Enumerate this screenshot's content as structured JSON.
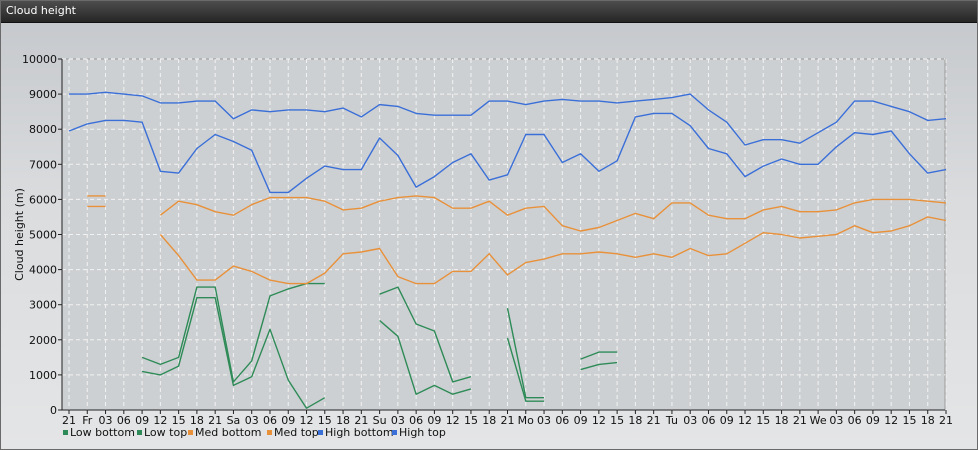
{
  "window": {
    "title": "Cloud height"
  },
  "chart_data": {
    "type": "line",
    "title": "Cloud height",
    "xlabel": "",
    "ylabel": "Cloud height (m)",
    "ylim": [
      0,
      10000
    ],
    "yticks": [
      0,
      1000,
      2000,
      3000,
      4000,
      5000,
      6000,
      7000,
      8000,
      9000,
      10000
    ],
    "grid": true,
    "legend_position": "bottom-left",
    "x": [
      "21",
      "Fr",
      "03",
      "06",
      "09",
      "12",
      "15",
      "18",
      "21",
      "Sa",
      "03",
      "06",
      "09",
      "12",
      "15",
      "18",
      "21",
      "Su",
      "03",
      "06",
      "09",
      "12",
      "15",
      "18",
      "21",
      "Mo",
      "03",
      "06",
      "09",
      "12",
      "15",
      "18",
      "21",
      "Tu",
      "03",
      "06",
      "09",
      "12",
      "15",
      "18",
      "21",
      "We",
      "03",
      "06",
      "09",
      "12",
      "15",
      "18",
      "21"
    ],
    "series": [
      {
        "name": "Low bottom",
        "color": "#2e8b57",
        "values": [
          null,
          null,
          null,
          null,
          1100,
          1000,
          1250,
          3200,
          3200,
          700,
          950,
          2300,
          850,
          50,
          350,
          null,
          null,
          2550,
          2100,
          450,
          700,
          450,
          600,
          null,
          2050,
          250,
          250,
          null,
          1150,
          1300,
          1350,
          null,
          null,
          null,
          null,
          null,
          null,
          null,
          null,
          null,
          null,
          null,
          null,
          null,
          null,
          null,
          null,
          null,
          null
        ]
      },
      {
        "name": "Low top",
        "color": "#2e8b57",
        "values": [
          null,
          null,
          null,
          null,
          1500,
          1300,
          1500,
          3500,
          3500,
          800,
          1400,
          3250,
          3450,
          3600,
          3600,
          null,
          null,
          3300,
          3500,
          2450,
          2250,
          800,
          950,
          null,
          2900,
          350,
          350,
          null,
          1450,
          1650,
          1650,
          null,
          null,
          null,
          null,
          null,
          null,
          null,
          null,
          null,
          null,
          null,
          null,
          null,
          null,
          null,
          null,
          null,
          null
        ]
      },
      {
        "name": "Med bottom",
        "color": "#e8913a",
        "values": [
          null,
          5800,
          5800,
          null,
          null,
          5000,
          4400,
          3700,
          3700,
          4100,
          3950,
          3700,
          3600,
          3600,
          3900,
          4450,
          4500,
          4600,
          3800,
          3600,
          3600,
          3950,
          3950,
          4450,
          3850,
          4200,
          4300,
          4450,
          4450,
          4500,
          4450,
          4350,
          4450,
          4350,
          4600,
          4400,
          4450,
          4750,
          5050,
          5000,
          4900,
          4950,
          5000,
          5250,
          5050,
          5100,
          5250,
          5500,
          5400
        ]
      },
      {
        "name": "Med top",
        "color": "#e8913a",
        "values": [
          null,
          6100,
          6100,
          null,
          null,
          5550,
          5950,
          5850,
          5650,
          5550,
          5850,
          6050,
          6050,
          6050,
          5950,
          5700,
          5750,
          5950,
          6050,
          6100,
          6050,
          5750,
          5750,
          5950,
          5550,
          5750,
          5800,
          5250,
          5100,
          5200,
          5400,
          5600,
          5450,
          5900,
          5900,
          5550,
          5450,
          5450,
          5700,
          5800,
          5650,
          5650,
          5700,
          5900,
          6000,
          6000,
          6000,
          5950,
          5900
        ]
      },
      {
        "name": "High bottom",
        "color": "#3a6fd8",
        "values": [
          7950,
          8150,
          8250,
          8250,
          8200,
          6800,
          6750,
          7450,
          7850,
          7650,
          7400,
          6200,
          6200,
          6600,
          6950,
          6850,
          6850,
          7750,
          7250,
          6350,
          6650,
          7050,
          7300,
          6550,
          6700,
          7850,
          7850,
          7050,
          7300,
          6800,
          7100,
          8350,
          8450,
          8450,
          8100,
          7450,
          7300,
          6650,
          6950,
          7150,
          7000,
          7000,
          7500,
          7900,
          7850,
          7950,
          7300,
          6750,
          6850
        ]
      },
      {
        "name": "High top",
        "color": "#3a6fd8",
        "values": [
          9000,
          9000,
          9050,
          9000,
          8950,
          8750,
          8750,
          8800,
          8800,
          8300,
          8550,
          8500,
          8550,
          8550,
          8500,
          8600,
          8350,
          8700,
          8650,
          8450,
          8400,
          8400,
          8400,
          8800,
          8800,
          8700,
          8800,
          8850,
          8800,
          8800,
          8750,
          8800,
          8850,
          8900,
          9000,
          8550,
          8200,
          7550,
          7700,
          7700,
          7600,
          7900,
          8200,
          8800,
          8800,
          8650,
          8500,
          8250,
          8300
        ]
      }
    ]
  }
}
